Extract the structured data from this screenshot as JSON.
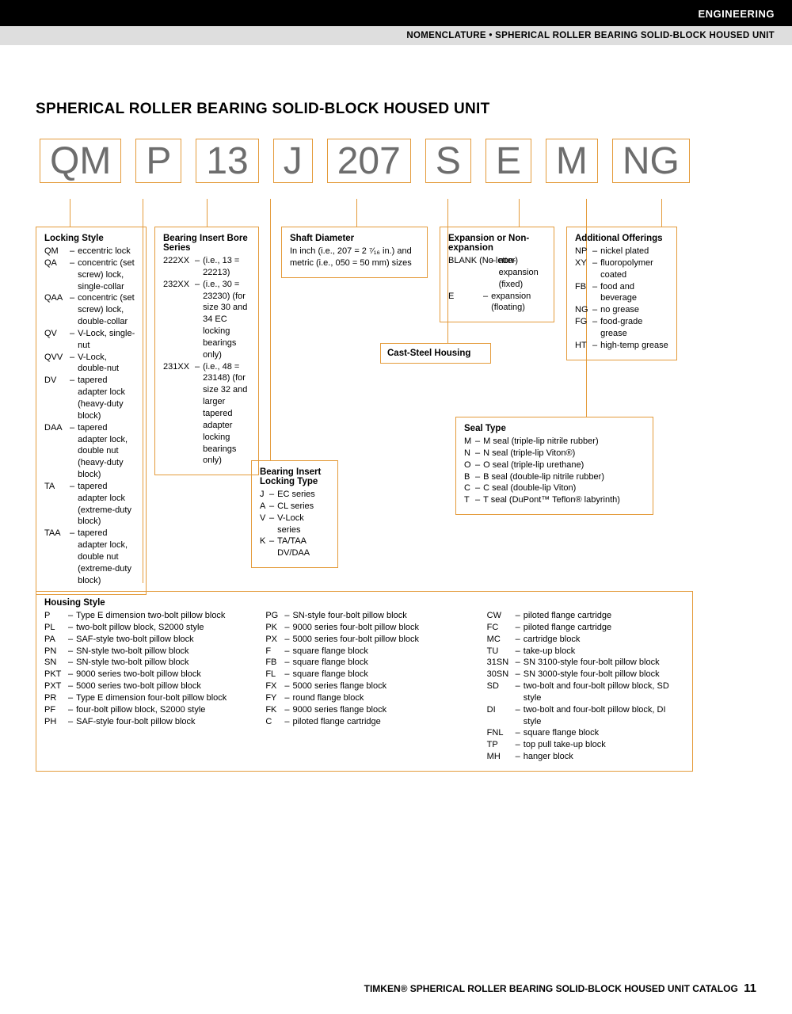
{
  "header": {
    "section": "ENGINEERING",
    "sub": "NOMENCLATURE • SPHERICAL ROLLER BEARING SOLID-BLOCK HOUSED UNIT"
  },
  "title": "SPHERICAL ROLLER BEARING SOLID-BLOCK HOUSED UNIT",
  "codes": [
    "QM",
    "P",
    "13",
    "J",
    "207",
    "S",
    "E",
    "M",
    "NG"
  ],
  "lockingStyle": {
    "title": "Locking Style",
    "items": [
      [
        "QM",
        "eccentric lock"
      ],
      [
        "QA",
        "concentric (set screw) lock, single-collar"
      ],
      [
        "QAA",
        "concentric (set screw) lock, double-collar"
      ],
      [
        "QV",
        "V-Lock, single-nut"
      ],
      [
        "QVV",
        "V-Lock, double-nut"
      ],
      [
        "DV",
        "tapered adapter lock (heavy-duty block)"
      ],
      [
        "DAA",
        "tapered adapter lock, double nut (heavy-duty block)"
      ],
      [
        "TA",
        "tapered adapter lock (extreme-duty block)"
      ],
      [
        "TAA",
        "tapered adapter lock, double nut (extreme-duty block)"
      ]
    ]
  },
  "boreSeries": {
    "title": "Bearing Insert Bore Series",
    "items": [
      [
        "222XX",
        "(i.e., 13 = 22213)"
      ],
      [
        "232XX",
        "(i.e., 30 = 23230) (for size 30 and 34 EC locking bearings only)"
      ],
      [
        "231XX",
        "(i.e., 48 = 23148) (for size 32 and larger tapered adapter locking bearings only)"
      ]
    ]
  },
  "shaftDia": {
    "title": "Shaft Diameter",
    "text": "In inch (i.e., 207 = 2 ⁷⁄₁₆ in.) and metric (i.e., 050 = 50 mm) sizes"
  },
  "expansion": {
    "title": "Expansion or Non-expansion",
    "items": [
      [
        "BLANK (No letter)",
        "non-expansion (fixed)"
      ],
      [
        "E",
        "expansion (floating)"
      ]
    ]
  },
  "additional": {
    "title": "Additional Offerings",
    "items": [
      [
        "NP",
        "nickel plated"
      ],
      [
        "XY",
        "fluoropolymer coated"
      ],
      [
        "FB",
        "food and beverage"
      ],
      [
        "NG",
        "no grease"
      ],
      [
        "FG",
        "food-grade grease"
      ],
      [
        "HT",
        "high-temp grease"
      ]
    ]
  },
  "castSteel": "Cast-Steel Housing",
  "lockingType": {
    "title": "Bearing Insert Locking Type",
    "items": [
      [
        "J",
        "EC series"
      ],
      [
        "A",
        "CL series"
      ],
      [
        "V",
        "V-Lock series"
      ],
      [
        "K",
        "TA/TAA DV/DAA"
      ]
    ]
  },
  "sealType": {
    "title": "Seal Type",
    "items": [
      [
        "M",
        "M seal (triple-lip nitrile rubber)"
      ],
      [
        "N",
        "N seal (triple-lip Viton®)"
      ],
      [
        "O",
        "O seal (triple-lip urethane)"
      ],
      [
        "B",
        "B seal (double-lip nitrile rubber)"
      ],
      [
        "C",
        "C seal (double-lip Viton)"
      ],
      [
        "T",
        "T seal (DuPont™ Teflon® labyrinth)"
      ]
    ]
  },
  "housingStyle": {
    "title": "Housing Style",
    "col1": [
      [
        "P",
        "Type E dimension two-bolt pillow block"
      ],
      [
        "PL",
        "two-bolt pillow block, S2000 style"
      ],
      [
        "PA",
        "SAF-style two-bolt pillow block"
      ],
      [
        "PN",
        "SN-style two-bolt pillow block"
      ],
      [
        "SN",
        "SN-style two-bolt pillow block"
      ],
      [
        "PKT",
        "9000 series two-bolt pillow block"
      ],
      [
        "PXT",
        "5000 series two-bolt pillow block"
      ],
      [
        "PR",
        "Type E dimension four-bolt pillow block"
      ],
      [
        "PF",
        "four-bolt pillow block, S2000 style"
      ],
      [
        "PH",
        "SAF-style four-bolt pillow block"
      ]
    ],
    "col2": [
      [
        "PG",
        "SN-style four-bolt pillow block"
      ],
      [
        "PK",
        "9000 series four-bolt pillow block"
      ],
      [
        "PX",
        "5000 series four-bolt pillow block"
      ],
      [
        "F",
        "square flange block"
      ],
      [
        "FB",
        "square flange block"
      ],
      [
        "FL",
        "square flange block"
      ],
      [
        "FX",
        "5000 series flange block"
      ],
      [
        "FY",
        "round flange block"
      ],
      [
        "FK",
        "9000 series flange block"
      ],
      [
        "C",
        "piloted flange cartridge"
      ]
    ],
    "col3": [
      [
        "CW",
        "piloted flange cartridge"
      ],
      [
        "FC",
        "piloted flange cartridge"
      ],
      [
        "MC",
        "cartridge block"
      ],
      [
        "TU",
        "take-up block"
      ],
      [
        "31SN",
        "SN 3100-style four-bolt pillow block"
      ],
      [
        "30SN",
        "SN 3000-style four-bolt pillow block"
      ],
      [
        "SD",
        "two-bolt and four-bolt pillow block, SD style"
      ],
      [
        "DI",
        "two-bolt and four-bolt pillow block, DI style"
      ],
      [
        "FNL",
        "square flange block"
      ],
      [
        "TP",
        "top pull take-up block"
      ],
      [
        "MH",
        "hanger block"
      ]
    ]
  },
  "footer": {
    "text": "TIMKEN® SPHERICAL ROLLER BEARING SOLID-BLOCK HOUSED UNIT CATALOG",
    "page": "11"
  },
  "colors": {
    "accent": "#e49b3b",
    "code_text": "#6d6d6d"
  }
}
